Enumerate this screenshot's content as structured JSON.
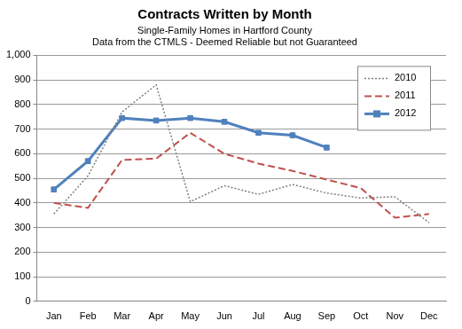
{
  "chart_data": {
    "type": "line",
    "title": "Contracts Written by Month",
    "subtitle": [
      "Single-Family Homes in Hartford County",
      "Data from the CTMLS - Deemed Reliable but not Guaranteed"
    ],
    "categories": [
      "Jan",
      "Feb",
      "Mar",
      "Apr",
      "May",
      "Jun",
      "Jul",
      "Aug",
      "Sep",
      "Oct",
      "Nov",
      "Dec"
    ],
    "series": [
      {
        "name": "2010",
        "color": "#808080",
        "line_style": "dotted",
        "marker": "none",
        "values": [
          355,
          510,
          770,
          880,
          405,
          470,
          435,
          475,
          440,
          420,
          425,
          320
        ]
      },
      {
        "name": "2011",
        "color": "#c0504d",
        "line_style": "dashed",
        "marker": "none",
        "values": [
          400,
          380,
          575,
          580,
          685,
          600,
          560,
          530,
          495,
          460,
          340,
          355
        ]
      },
      {
        "name": "2012",
        "color": "#4f81bd",
        "line_style": "solid",
        "marker": "square",
        "values": [
          455,
          570,
          745,
          735,
          745,
          730,
          685,
          675,
          625,
          null,
          null,
          null
        ]
      }
    ],
    "ylim": [
      0,
      1000
    ],
    "yticks": [
      0,
      100,
      200,
      300,
      400,
      500,
      600,
      700,
      800,
      900,
      {
        "value": 1000,
        "label": "1,000"
      }
    ],
    "grid": true,
    "legend": "top-right"
  }
}
